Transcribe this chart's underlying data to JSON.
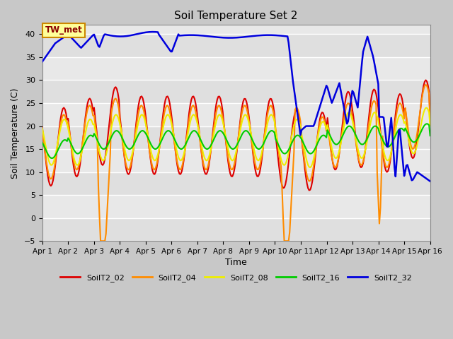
{
  "title": "Soil Temperature Set 2",
  "xlabel": "Time",
  "ylabel": "Soil Temperature (C)",
  "ylim": [
    -5,
    42
  ],
  "yticks": [
    -5,
    0,
    5,
    10,
    15,
    20,
    25,
    30,
    35,
    40
  ],
  "xlim": [
    0,
    15
  ],
  "line_colors": {
    "SoilT2_02": "#dd0000",
    "SoilT2_04": "#ff8c00",
    "SoilT2_08": "#eeee00",
    "SoilT2_16": "#00cc00",
    "SoilT2_32": "#0000dd"
  },
  "fig_bg": "#c8c8c8",
  "plot_bg": "#e8e8e8",
  "grid_color": "#ffffff",
  "annotation_text": "TW_met",
  "legend_labels": [
    "SoilT2_02",
    "SoilT2_04",
    "SoilT2_08",
    "SoilT2_16",
    "SoilT2_32"
  ]
}
